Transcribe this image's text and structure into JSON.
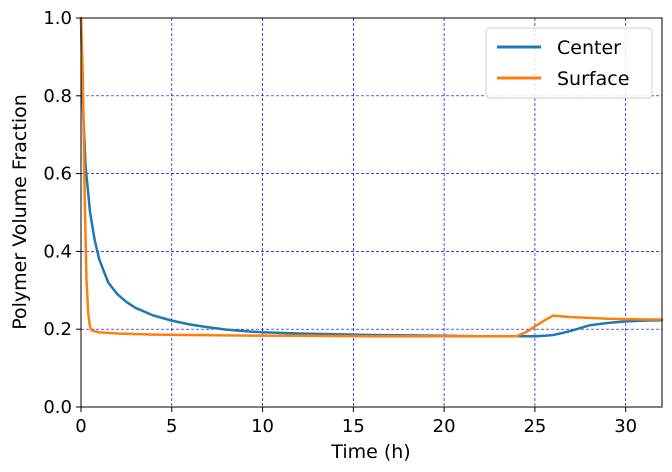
{
  "chart_data": {
    "type": "line",
    "xlabel": "Time (h)",
    "ylabel": "Polymer Volume Fraction",
    "xlim": [
      0,
      32
    ],
    "ylim": [
      0,
      1
    ],
    "xticks": [
      0,
      5,
      10,
      15,
      20,
      25,
      30
    ],
    "yticks": [
      0.0,
      0.2,
      0.4,
      0.6,
      0.8,
      1.0
    ],
    "xtick_labels": [
      "0",
      "5",
      "10",
      "15",
      "20",
      "25",
      "30"
    ],
    "ytick_labels": [
      "0.0",
      "0.2",
      "0.4",
      "0.6",
      "0.8",
      "1.0"
    ],
    "grid": true,
    "grid_color": "#0000cc",
    "legend_position": "top-right",
    "series": [
      {
        "name": "Center",
        "color": "#1f77b4",
        "x": [
          0,
          0.1,
          0.25,
          0.5,
          0.75,
          1,
          1.5,
          2,
          2.5,
          3,
          4,
          5,
          6,
          7,
          8,
          9,
          10,
          12,
          14,
          16,
          18,
          20,
          22,
          24,
          25,
          25.5,
          26,
          26.5,
          27,
          27.5,
          28,
          29,
          30,
          31,
          32
        ],
        "y": [
          1.0,
          0.78,
          0.62,
          0.5,
          0.43,
          0.38,
          0.32,
          0.29,
          0.27,
          0.255,
          0.235,
          0.222,
          0.212,
          0.205,
          0.199,
          0.195,
          0.192,
          0.189,
          0.187,
          0.185,
          0.184,
          0.183,
          0.182,
          0.182,
          0.182,
          0.183,
          0.185,
          0.19,
          0.196,
          0.203,
          0.21,
          0.216,
          0.22,
          0.222,
          0.223
        ]
      },
      {
        "name": "Surface",
        "color": "#ff7f0e",
        "x": [
          0,
          0.1,
          0.2,
          0.3,
          0.4,
          0.5,
          0.6,
          0.8,
          1,
          2,
          4,
          8,
          12,
          16,
          20,
          24,
          24.5,
          25,
          25.5,
          26,
          26.5,
          27,
          28,
          29,
          30,
          31,
          32
        ],
        "y": [
          1.0,
          0.85,
          0.55,
          0.33,
          0.24,
          0.205,
          0.197,
          0.194,
          0.192,
          0.189,
          0.186,
          0.184,
          0.183,
          0.182,
          0.182,
          0.182,
          0.192,
          0.207,
          0.222,
          0.235,
          0.233,
          0.231,
          0.229,
          0.227,
          0.226,
          0.225,
          0.225
        ]
      }
    ]
  }
}
